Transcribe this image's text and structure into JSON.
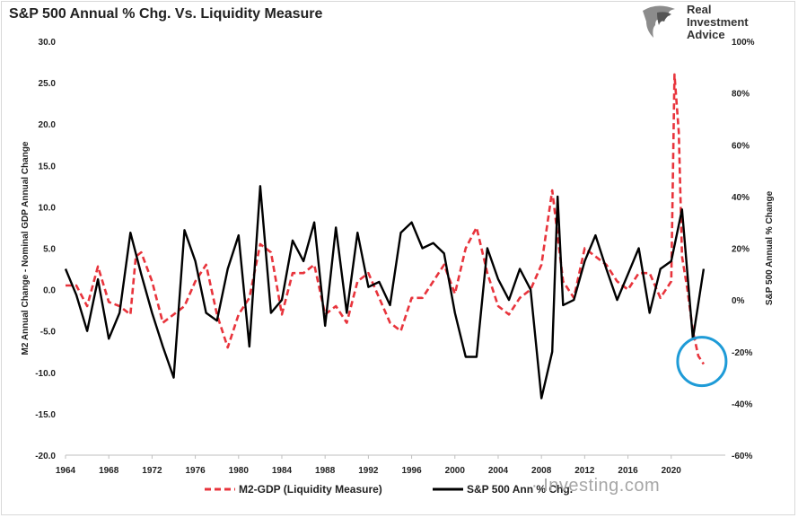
{
  "title": "S&P 500 Annual % Chg. Vs. Liquidity Measure",
  "brand": {
    "line1": "Real",
    "line2": "Investment",
    "line3": "Advice",
    "logo_icon": "eagle-head-icon"
  },
  "watermark": "· Investing.com",
  "chart_data": {
    "type": "line",
    "title": "S&P 500 Annual % Chg. Vs. Liquidity Measure",
    "x_ticks": [
      "1964",
      "1968",
      "1972",
      "1976",
      "1980",
      "1984",
      "1988",
      "1992",
      "1996",
      "2000",
      "2004",
      "2008",
      "2012",
      "2016",
      "2020"
    ],
    "xlim": [
      1964,
      2025
    ],
    "left_axis": {
      "label": "M2 Annual Change - Nominal GDP Annual Change",
      "ylim": [
        -20,
        30
      ],
      "ticks": [
        "30.0",
        "25.0",
        "20.0",
        "15.0",
        "10.0",
        "5.0",
        "0.0",
        "-5.0",
        "-10.0",
        "-15.0",
        "-20.0"
      ]
    },
    "right_axis": {
      "label": "S&P 500 Annual % Change",
      "ylim": [
        -60,
        100
      ],
      "ticks": [
        "100%",
        "80%",
        "60%",
        "40%",
        "20%",
        "0%",
        "-20%",
        "-40%",
        "-60%"
      ]
    },
    "legend_position": "bottom",
    "grid": false,
    "annotation": "blue circle highlighting latest M2-GDP reading",
    "series": [
      {
        "name": "M2-GDP (Liquidity Measure)",
        "axis": "left",
        "style": "dashed",
        "color": "#e8343c",
        "x": [
          1964,
          1965,
          1966,
          1967,
          1968,
          1969,
          1970,
          1970.5,
          1971,
          1972,
          1973,
          1974,
          1975,
          1976,
          1977,
          1978,
          1979,
          1980,
          1981,
          1982,
          1983,
          1984,
          1985,
          1986,
          1987,
          1988,
          1989,
          1990,
          1991,
          1992,
          1993,
          1994,
          1995,
          1996,
          1997,
          1998,
          1999,
          2000,
          2001,
          2002,
          2003,
          2004,
          2005,
          2006,
          2007,
          2008,
          2009,
          2010,
          2011,
          2012,
          2013,
          2014,
          2015,
          2016,
          2017,
          2018,
          2019,
          2020,
          2020.3,
          2020.7,
          2021,
          2021.5,
          2022,
          2022.5,
          2023
        ],
        "values": [
          0.5,
          0.5,
          -2,
          2.8,
          -1.5,
          -2,
          -3,
          4,
          4.5,
          1,
          -4,
          -3,
          -2,
          1,
          3,
          -3,
          -7,
          -3,
          -1,
          5.5,
          4.5,
          -3,
          2,
          2,
          3,
          -3,
          -2,
          -4,
          1,
          2,
          -1,
          -4,
          -5,
          -1,
          -1,
          1,
          3,
          -0.5,
          5,
          7.5,
          2,
          -2,
          -3,
          -1,
          0,
          3,
          12,
          1,
          -1,
          5,
          4,
          3,
          1,
          0,
          2,
          2,
          -1,
          1,
          26,
          19,
          4,
          0,
          -5,
          -8,
          -9
        ]
      },
      {
        "name": "S&P 500 Ann % Chg.",
        "axis": "right",
        "style": "solid",
        "color": "#000000",
        "x": [
          1964,
          1965,
          1966,
          1967,
          1968,
          1969,
          1970,
          1971,
          1972,
          1973,
          1974,
          1975,
          1976,
          1977,
          1978,
          1979,
          1980,
          1981,
          1982,
          1983,
          1984,
          1985,
          1986,
          1987,
          1988,
          1989,
          1990,
          1991,
          1992,
          1993,
          1994,
          1995,
          1996,
          1997,
          1998,
          1999,
          2000,
          2001,
          2002,
          2003,
          2004,
          2005,
          2006,
          2007,
          2008,
          2009,
          2009.5,
          2010,
          2011,
          2012,
          2013,
          2014,
          2015,
          2016,
          2017,
          2018,
          2019,
          2020,
          2021,
          2022,
          2023
        ],
        "values": [
          12,
          2,
          -12,
          8,
          -15,
          -5,
          26,
          10,
          -5,
          -18,
          -30,
          27,
          15,
          -5,
          -8,
          12,
          25,
          -18,
          44,
          -5,
          0,
          23,
          15,
          30,
          -10,
          28,
          -5,
          26,
          5,
          7,
          -2,
          26,
          30,
          20,
          22,
          18,
          -5,
          -22,
          -22,
          20,
          8,
          0,
          12,
          4,
          -38,
          -20,
          40,
          -2,
          0,
          15,
          25,
          12,
          0,
          10,
          20,
          -5,
          12,
          15,
          35,
          -15,
          12
        ]
      }
    ]
  }
}
